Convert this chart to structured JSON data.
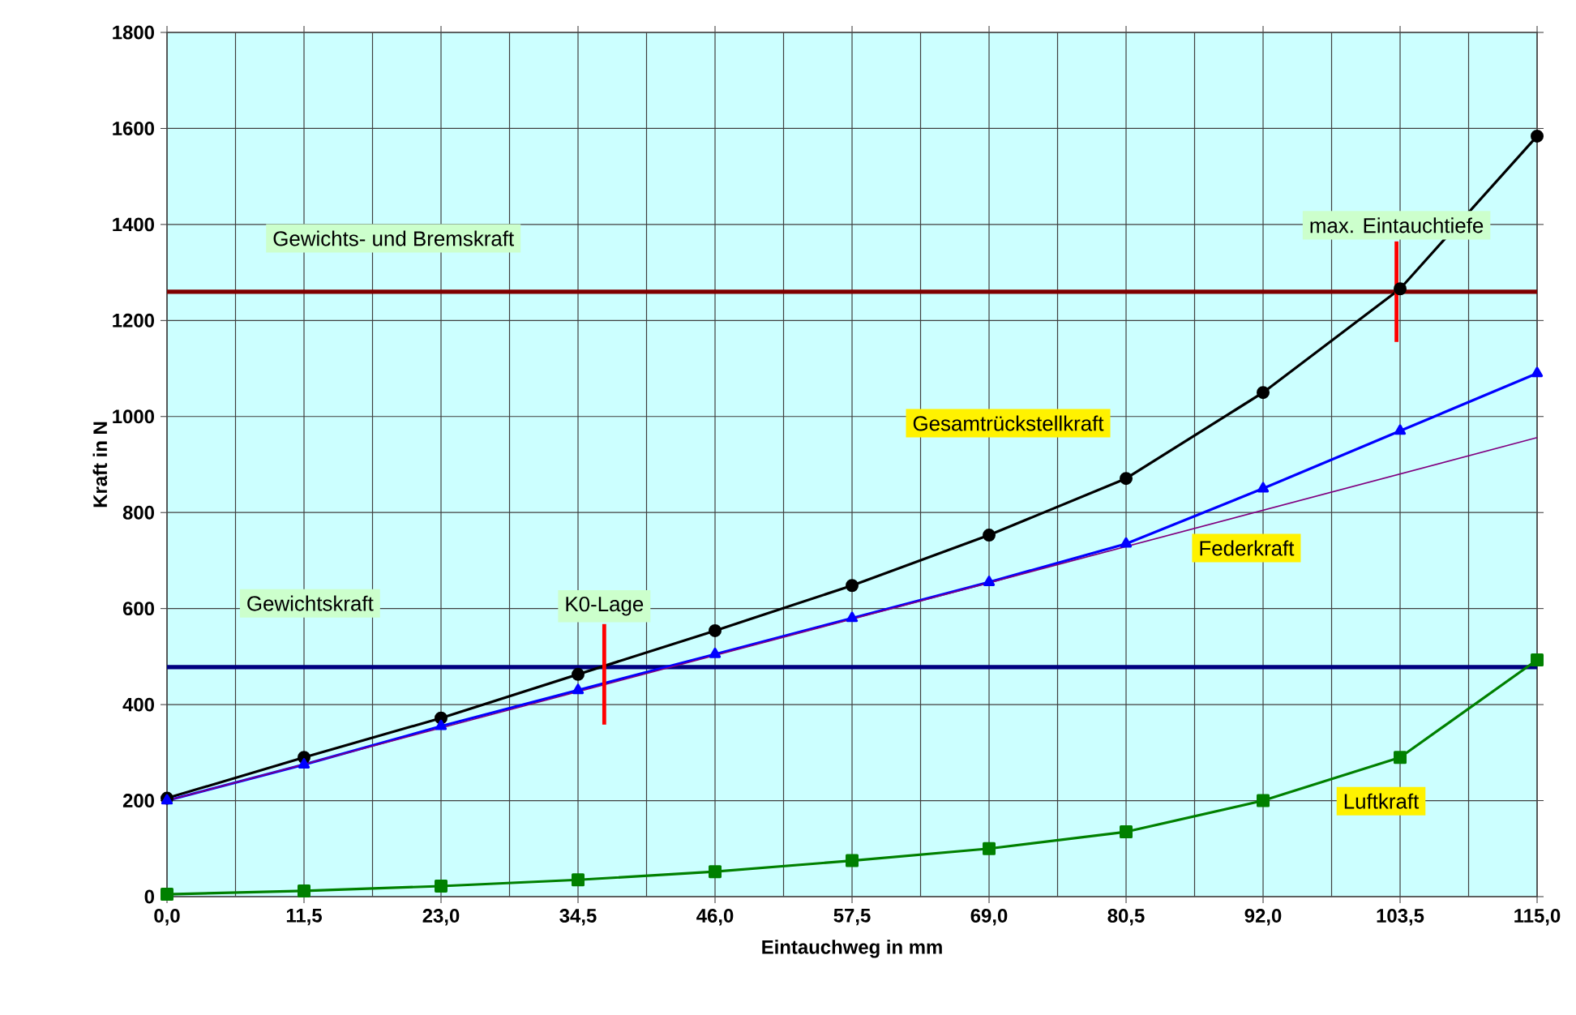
{
  "chart_data": {
    "type": "line",
    "xlabel": "Eintauchweg in mm",
    "ylabel": "Kraft in N",
    "x": [
      0,
      11.5,
      23,
      34.5,
      46,
      57.5,
      69,
      80.5,
      92,
      103.5,
      115
    ],
    "series": [
      {
        "name": "Gesamtrückstellkraft",
        "color": "#000000",
        "marker": "circle",
        "values": [
          205,
          290,
          372,
          463,
          554,
          648,
          753,
          871,
          1050,
          1266,
          1584
        ]
      },
      {
        "name": "Federkraft",
        "color": "#0000ff",
        "marker": "triangle",
        "values": [
          200,
          275,
          355,
          430,
          505,
          580,
          655,
          735,
          850,
          970,
          1090
        ]
      },
      {
        "color": "#800080",
        "marker": "none",
        "x": [
          0,
          115
        ],
        "values": [
          200,
          956
        ]
      },
      {
        "name": "Luftkraft",
        "color": "#008000",
        "marker": "square",
        "values": [
          5,
          12,
          22,
          35,
          52,
          75,
          100,
          135,
          200,
          290,
          493
        ]
      }
    ],
    "xlim": [
      0,
      115
    ],
    "ylim": [
      0,
      1800
    ],
    "xticks": [
      {
        "value": 0,
        "label": "0,0"
      },
      {
        "value": 11.5,
        "label": "11,5"
      },
      {
        "value": 23,
        "label": "23,0"
      },
      {
        "value": 34.5,
        "label": "34,5"
      },
      {
        "value": 46,
        "label": "46,0"
      },
      {
        "value": 57.5,
        "label": "57,5"
      },
      {
        "value": 69,
        "label": "69,0"
      },
      {
        "value": 80.5,
        "label": "80,5"
      },
      {
        "value": 92,
        "label": "92,0"
      },
      {
        "value": 103.5,
        "label": "103,5"
      },
      {
        "value": 115,
        "label": "115,0"
      }
    ],
    "yticks": [
      0,
      200,
      400,
      600,
      800,
      1000,
      1200,
      1400,
      1600,
      1800
    ],
    "ref_lines": [
      {
        "axis": "y",
        "value": 1260,
        "label": "Gewichts- und Bremskraft",
        "color": "#800000"
      },
      {
        "axis": "y",
        "value": 478,
        "label": "Gewichtskraft",
        "color": "#000080"
      }
    ],
    "annotations": [
      {
        "text": "K0-Lage",
        "x": 36.7,
        "y": 463
      },
      {
        "text": "max. Eintauchtiefe",
        "x": 103.2,
        "y": 1260
      }
    ],
    "grid": true,
    "line_style": "solid"
  }
}
